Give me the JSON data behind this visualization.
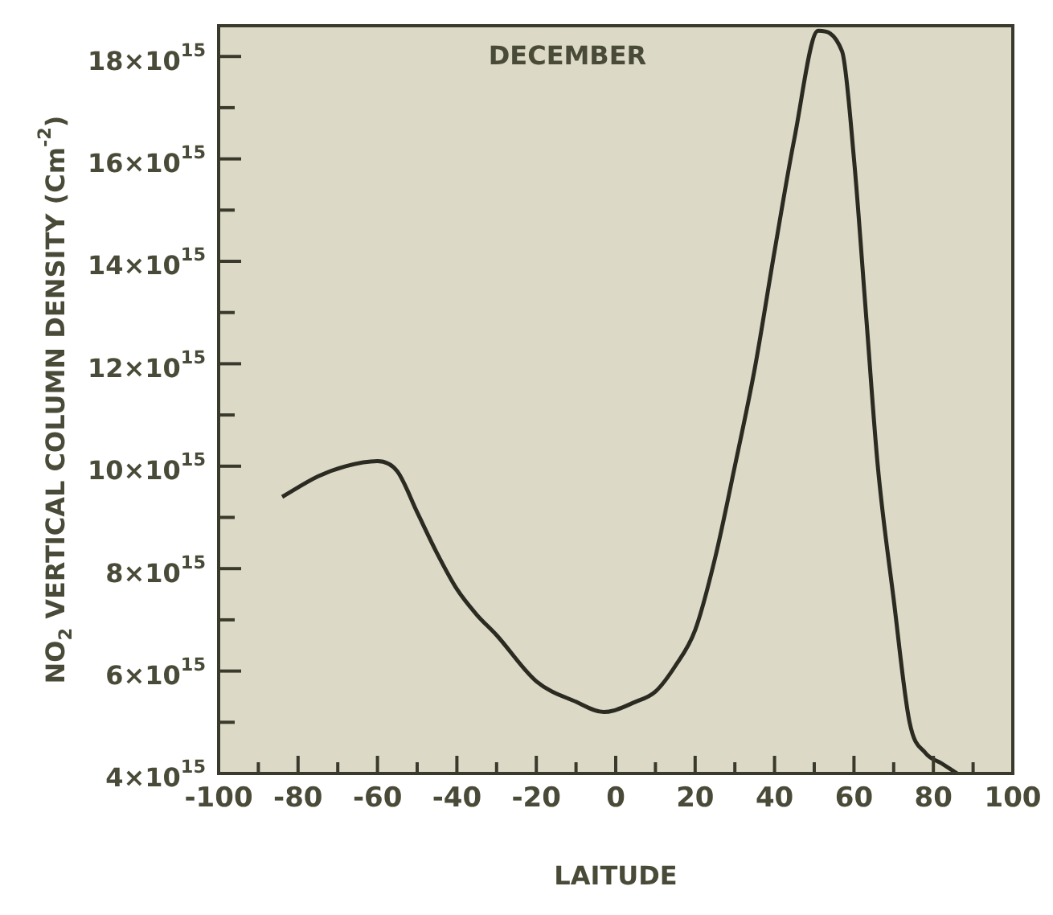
{
  "chart_data": {
    "type": "line",
    "title": "DECEMBER",
    "xlabel": "LAITUDE",
    "ylabel": "NO$_{2}$ VERTICAL COLUMN DENSITY (Cm$^{-2}$)",
    "series": [
      {
        "color": "#2b2b22",
        "x": [
          -84,
          -75,
          -68,
          -60,
          -55,
          -50,
          -45,
          -40,
          -35,
          -30,
          -20,
          -10,
          -3,
          5,
          10,
          15,
          20,
          25,
          30,
          35,
          40,
          45,
          51,
          57,
          60,
          63,
          66,
          70,
          74,
          78,
          82,
          86
        ],
        "values": [
          9400000000000000.0,
          9800000000000000.0,
          1e+16,
          1.01e+16,
          9900000000000000.0,
          9100000000000000.0,
          8300000000000000.0,
          7600000000000000.0,
          7100000000000000.0,
          6700000000000000.0,
          5800000000000000.0,
          5400000000000000.0,
          5200000000000000.0,
          5400000000000000.0,
          5600000000000000.0,
          6100000000000000.0,
          6800000000000000.0,
          8200000000000000.0,
          1e+16,
          1.19e+16,
          1.42e+16,
          1.64e+16,
          1.85e+16,
          1.81e+16,
          1.6e+16,
          1.3e+16,
          1e+16,
          7400000000000000.0,
          5000000000000000.0,
          4400000000000000.0,
          4200000000000000.0,
          4000000000000000.0
        ]
      }
    ],
    "xlim": [
      -100,
      100
    ],
    "xticks": [
      -100,
      {
        "value": -90,
        "label": null
      },
      -80,
      {
        "value": -70,
        "label": null
      },
      -60,
      {
        "value": -50,
        "label": null
      },
      -40,
      {
        "value": -30,
        "label": null
      },
      -20,
      {
        "value": -10,
        "label": null
      },
      0,
      {
        "value": 10,
        "label": null
      },
      20,
      {
        "value": 30,
        "label": null
      },
      40,
      {
        "value": 50,
        "label": null
      },
      60,
      {
        "value": 70,
        "label": null
      },
      80,
      {
        "value": 90,
        "label": null
      },
      100
    ],
    "ylim": [
      4000000000000000.0,
      1.86e+16
    ],
    "yticks": [
      {
        "value": 4000000000000000.0,
        "label": "4×10$^{15}$"
      },
      {
        "value": 5000000000000000.0,
        "label": null
      },
      {
        "value": 6000000000000000.0,
        "label": "6×10$^{15}$"
      },
      {
        "value": 7000000000000000.0,
        "label": null
      },
      {
        "value": 8000000000000000.0,
        "label": "8×10$^{15}$"
      },
      {
        "value": 9000000000000000.0,
        "label": null
      },
      {
        "value": 1e+16,
        "label": "10×10$^{15}$"
      },
      {
        "value": 1.1e+16,
        "label": null
      },
      {
        "value": 1.2e+16,
        "label": "12×10$^{15}$"
      },
      {
        "value": 1.3e+16,
        "label": null
      },
      {
        "value": 1.4e+16,
        "label": "14×10$^{15}$"
      },
      {
        "value": 1.5e+16,
        "label": null
      },
      {
        "value": 1.6e+16,
        "label": "16×10$^{15}$"
      },
      {
        "value": 1.7e+16,
        "label": null
      },
      {
        "value": 1.8e+16,
        "label": "18×10$^{15}$"
      }
    ],
    "grid": false,
    "legend": false,
    "marker": "none",
    "line_style": "solid"
  }
}
